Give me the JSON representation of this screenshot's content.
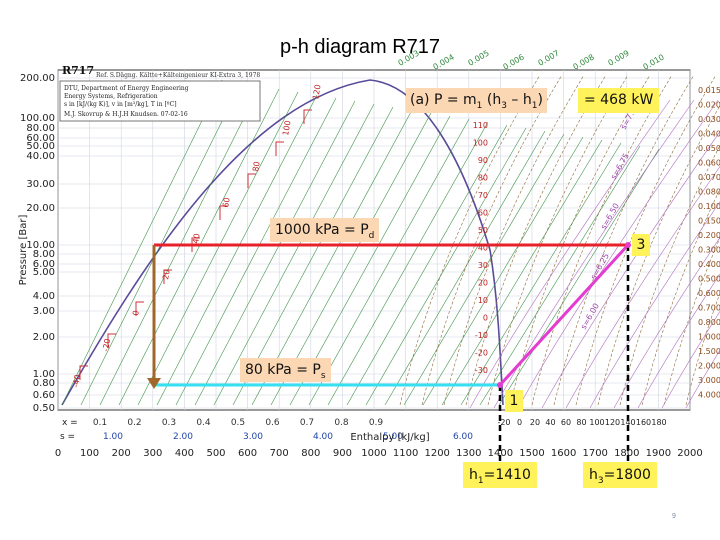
{
  "slide": {
    "title": "p-h diagram R717",
    "page_number": "9"
  },
  "chart": {
    "refrigerant": "R717",
    "ref_line": "Ref. S.Dägng. Kältte+Kälteingenieur KI-Extra 3, 1978",
    "info_box": [
      "DTU, Department of Energy Engineering",
      "Energy Systems, Refrigeration",
      "s in [kJ/(kg K)], v in [m³/kg], T in [ºC]",
      "M.J. Skovrup & H.J.H Knudsen. 07-02-16"
    ],
    "ylabel": "Pressure [Bar]",
    "xlabel": "Enthalpy [kJ/kg]",
    "y_ticks": [
      "200.00",
      "100.00",
      "80.00",
      "60.00",
      "50.00",
      "40.00",
      "30.00",
      "20.00",
      "10.00",
      "8.00",
      "6.00",
      "5.00",
      "4.00",
      "3.00",
      "2.00",
      "1.00",
      "0.80",
      "0.60",
      "0.50"
    ],
    "x_ticks": [
      "0",
      "100",
      "200",
      "300",
      "400",
      "500",
      "600",
      "700",
      "800",
      "900",
      "1000",
      "1100",
      "1200",
      "1300",
      "1400",
      "1500",
      "1600",
      "1700",
      "1800",
      "1900",
      "2000"
    ],
    "quality_label": "x =",
    "quality_ticks": [
      "0.1",
      "0.2",
      "0.3",
      "0.4",
      "0.5",
      "0.6",
      "0.7",
      "0.8",
      "0.9"
    ],
    "entropy_label": "s =",
    "entropy_ticks": [
      "1.00",
      "2.00",
      "3.00",
      "4.00",
      "5.00",
      "6.00"
    ],
    "temp_ticks_liquid": [
      "120",
      "100",
      "80",
      "60",
      "40",
      "20",
      "0",
      "-20",
      "-40"
    ],
    "temp_ticks_vapor": [
      "110",
      "100",
      "90",
      "80",
      "70",
      "60",
      "50",
      "40",
      "30",
      "20",
      "10",
      "0",
      "-10",
      "-20",
      "-30"
    ],
    "temp_ticks_bottom": [
      "-20",
      "0",
      "20",
      "40",
      "60",
      "80",
      "100",
      "120",
      "140",
      "160",
      "180"
    ],
    "right_ticks": [
      "0.015",
      "0.020",
      "0.030",
      "0.040",
      "0.050",
      "0.060",
      "0.070",
      "0.080",
      "0.100",
      "0.150",
      "0.200",
      "0.300",
      "0.400",
      "0.500",
      "0.600",
      "0.700",
      "0.800",
      "1.000",
      "1.500",
      "2.000",
      "3.000",
      "4.000"
    ],
    "top_ticks": [
      "0.003",
      "0.004",
      "0.005",
      "0.006",
      "0.007",
      "0.008",
      "0.009",
      "0.010"
    ],
    "entropy_curve_labels": [
      "s=6.00",
      "s=6.25",
      "s=6.50",
      "s=6.75",
      "s=7.00"
    ]
  },
  "annotations": {
    "power_eq": "(a) P = m",
    "power_sub1": "1",
    "power_paren": " (h",
    "power_sub3": "3",
    "power_minus": " – h",
    "power_sub1b": "1",
    "power_close": ")",
    "power_result": "= 468 kW",
    "pd_label": "1000 kPa = P",
    "pd_sub": "d",
    "ps_label": "80 kPa = P",
    "ps_sub": "s",
    "state1": "1",
    "state3": "3",
    "h1_label": "h",
    "h1_sub": "1",
    "h1_value": "=1410",
    "h3_label": "h",
    "h3_sub": "3",
    "h3_value": "=1800"
  },
  "colors": {
    "high_pressure_line": "#e8202a",
    "low_pressure_line": "#36e0f0",
    "compression_line": "#e43bd0",
    "expansion_line": "#a0662a",
    "isotherm_green": "#2e8a3a",
    "dome": "#5a4a9a",
    "grid": "#cfd6df"
  }
}
